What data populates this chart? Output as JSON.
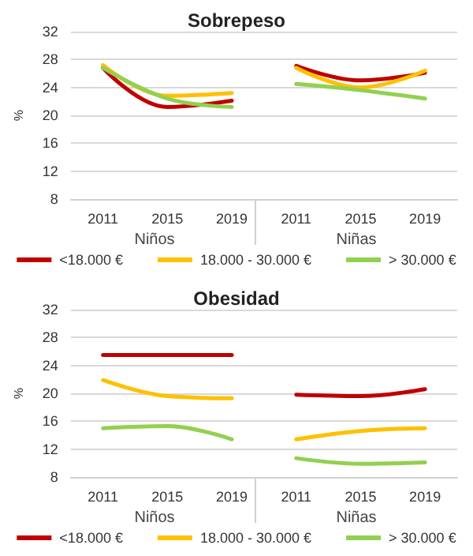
{
  "chart_data": [
    {
      "type": "line",
      "title": "Sobrepeso",
      "ylabel": "%",
      "categories": [
        "2011",
        "2015",
        "2019",
        "2011",
        "2015",
        "2019"
      ],
      "annotations": [
        "Niños",
        "Niñas"
      ],
      "ylim": [
        8,
        32
      ],
      "yticks": [
        8,
        12,
        16,
        20,
        24,
        28,
        32
      ],
      "grid": "y",
      "legend": "bottom",
      "marker": "none",
      "line_style": "solid",
      "series": [
        {
          "name": "<18.000 €",
          "color": "#c00000",
          "values": [
            26.8,
            21.2,
            22.1,
            27.1,
            25.0,
            26.1
          ]
        },
        {
          "name": "18.000 - 30.000 €",
          "color": "#ffc000",
          "values": [
            27.2,
            22.8,
            23.2,
            26.8,
            24.0,
            26.4
          ]
        },
        {
          "name": "> 30.000 €",
          "color": "#92d050",
          "values": [
            26.8,
            22.4,
            21.2,
            24.5,
            23.6,
            22.4
          ]
        }
      ]
    },
    {
      "type": "line",
      "title": "Obesidad",
      "ylabel": "%",
      "categories": [
        "2011",
        "2015",
        "2019",
        "2011",
        "2015",
        "2019"
      ],
      "annotations": [
        "Niños",
        "Niñas"
      ],
      "ylim": [
        8,
        32
      ],
      "yticks": [
        8,
        12,
        16,
        20,
        24,
        28,
        32
      ],
      "grid": "y",
      "legend": "bottom",
      "marker": "none",
      "line_style": "solid",
      "series": [
        {
          "name": "<18.000 €",
          "color": "#c00000",
          "values": [
            25.5,
            25.5,
            25.5,
            19.8,
            19.6,
            20.6
          ]
        },
        {
          "name": "18.000 - 30.000 €",
          "color": "#ffc000",
          "values": [
            21.9,
            19.6,
            19.3,
            13.4,
            14.6,
            15.0
          ]
        },
        {
          "name": "> 30.000 €",
          "color": "#92d050",
          "values": [
            15.0,
            15.3,
            13.4,
            10.7,
            9.9,
            10.1
          ]
        }
      ]
    }
  ]
}
